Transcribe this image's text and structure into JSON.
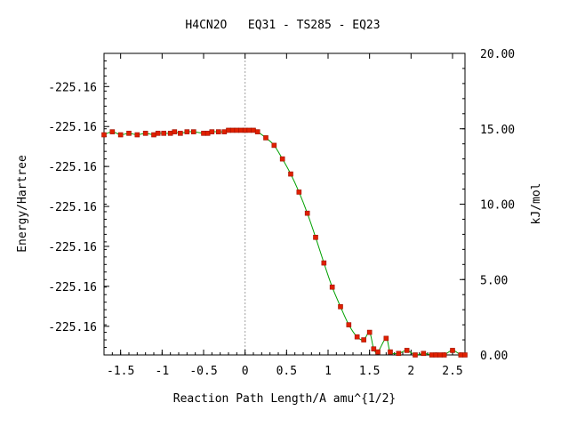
{
  "chart_data": {
    "type": "line",
    "title": "H4CN2O   EQ31 - TS285 - EQ23",
    "xlabel": "Reaction Path Length/A amu^{1/2}",
    "ylabel": "Energy/Hartree",
    "y2label": "kJ/mol",
    "xlim": [
      -1.7,
      2.65
    ],
    "ylim": [
      0,
      20
    ],
    "x_ticks": [
      -1.5,
      -1,
      -0.5,
      0,
      0.5,
      1,
      1.5,
      2,
      2.5
    ],
    "x_tick_labels": [
      "-1.5",
      "-1",
      "-0.5",
      "0",
      "0.5",
      "1",
      "1.5",
      "2",
      "2.5"
    ],
    "y_left_tick_positions": [
      1.9,
      4.55,
      7.2,
      9.85,
      12.5,
      15.15,
      17.8
    ],
    "y_left_tick_labels": [
      "-225.16",
      "-225.16",
      "-225.16",
      "-225.16",
      "-225.16",
      "-225.16",
      "-225.16"
    ],
    "y_right_ticks": [
      0,
      5,
      10,
      15,
      20
    ],
    "y_right_tick_labels": [
      "0.00",
      "5.00",
      "10.00",
      "15.00",
      "20.00"
    ],
    "ts_marker_x": 0,
    "grid": false,
    "colors": {
      "line": "#00a000",
      "point": "#e02000",
      "point_edge": "#a01000",
      "ts_line": "#a0a0a0"
    },
    "series": [
      {
        "x": [
          -1.7,
          -1.6,
          -1.5,
          -1.4,
          -1.3,
          -1.2,
          -1.1,
          -1.05,
          -0.98,
          -0.9,
          -0.85,
          -0.78,
          -0.7,
          -0.62,
          -0.5,
          -0.45,
          -0.4,
          -0.32,
          -0.25,
          -0.2,
          -0.15,
          -0.1,
          -0.05,
          0.0,
          0.05,
          0.1,
          0.15,
          0.25,
          0.35,
          0.45,
          0.55,
          0.65,
          0.75,
          0.85,
          0.95,
          1.05,
          1.15,
          1.25,
          1.35,
          1.43,
          1.5,
          1.55,
          1.6,
          1.7,
          1.75,
          1.85,
          1.95,
          2.05,
          2.15,
          2.25,
          2.3,
          2.35,
          2.4,
          2.5,
          2.6,
          2.65
        ],
        "y": [
          14.6,
          14.8,
          14.6,
          14.7,
          14.6,
          14.7,
          14.6,
          14.7,
          14.7,
          14.7,
          14.8,
          14.7,
          14.8,
          14.8,
          14.7,
          14.7,
          14.8,
          14.8,
          14.8,
          14.9,
          14.9,
          14.9,
          14.9,
          14.9,
          14.9,
          14.9,
          14.8,
          14.4,
          13.9,
          13.0,
          12.0,
          10.8,
          9.4,
          7.8,
          6.1,
          4.5,
          3.2,
          2.0,
          1.2,
          1.0,
          1.5,
          0.4,
          0.2,
          1.1,
          0.2,
          0.1,
          0.3,
          0.0,
          0.1,
          0.0,
          0.0,
          0.0,
          0.0,
          0.3,
          0.0,
          0.0
        ]
      }
    ]
  }
}
